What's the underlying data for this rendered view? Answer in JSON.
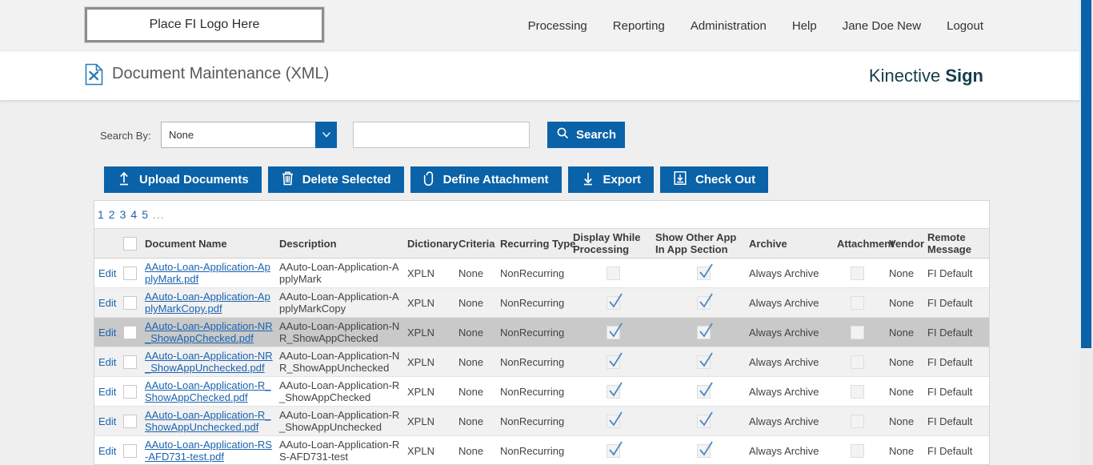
{
  "header": {
    "logo_placeholder": "Place FI Logo Here",
    "nav": [
      "Processing",
      "Reporting",
      "Administration",
      "Help",
      "Jane Doe New",
      "Logout"
    ]
  },
  "title_bar": {
    "page_title": "Document Maintenance (XML)",
    "brand_name": "Kinective",
    "brand_product": "Sign"
  },
  "search": {
    "label": "Search By:",
    "selected_option": "None",
    "input_value": "",
    "button_label": "Search"
  },
  "toolbar": {
    "buttons": [
      {
        "label": "Upload Documents",
        "icon": "upload-icon"
      },
      {
        "label": "Delete Selected",
        "icon": "trash-icon"
      },
      {
        "label": "Define Attachment",
        "icon": "paperclip-icon"
      },
      {
        "label": "Export",
        "icon": "download-icon"
      },
      {
        "label": "Check Out",
        "icon": "checkout-icon"
      }
    ]
  },
  "pagination": {
    "pages": [
      "1",
      "2",
      "3",
      "4",
      "5"
    ],
    "ellipsis": "..."
  },
  "table": {
    "edit_label": "Edit",
    "headers": [
      "Document Name",
      "Description",
      "Dictionary",
      "Criteria",
      "Recurring Type",
      "Display While Processing",
      "Show Other App In App Section",
      "Archive",
      "Attachment",
      "Vendor",
      "Remote Message"
    ],
    "rows": [
      {
        "name": "AAuto-Loan-Application-ApplyMark.pdf",
        "description": "AAuto-Loan-Application-ApplyMark",
        "dictionary": "XPLN",
        "criteria": "None",
        "recurring": "NonRecurring",
        "display_while_processing": false,
        "show_other_app": true,
        "archive": "Always Archive",
        "attachment": false,
        "vendor": "None",
        "remote_message": "FI Default",
        "highlighted": false
      },
      {
        "name": "AAuto-Loan-Application-ApplyMarkCopy.pdf",
        "description": "AAuto-Loan-Application-ApplyMarkCopy",
        "dictionary": "XPLN",
        "criteria": "None",
        "recurring": "NonRecurring",
        "display_while_processing": true,
        "show_other_app": true,
        "archive": "Always Archive",
        "attachment": false,
        "vendor": "None",
        "remote_message": "FI Default",
        "highlighted": false
      },
      {
        "name": "AAuto-Loan-Application-NR_ShowAppChecked.pdf",
        "description": "AAuto-Loan-Application-NR_ShowAppChecked",
        "dictionary": "XPLN",
        "criteria": "None",
        "recurring": "NonRecurring",
        "display_while_processing": true,
        "show_other_app": true,
        "archive": "Always Archive",
        "attachment": false,
        "vendor": "None",
        "remote_message": "FI Default",
        "highlighted": true
      },
      {
        "name": "AAuto-Loan-Application-NR_ShowAppUnchecked.pdf",
        "description": "AAuto-Loan-Application-NR_ShowAppUnchecked",
        "dictionary": "XPLN",
        "criteria": "None",
        "recurring": "NonRecurring",
        "display_while_processing": true,
        "show_other_app": true,
        "archive": "Always Archive",
        "attachment": false,
        "vendor": "None",
        "remote_message": "FI Default",
        "highlighted": false
      },
      {
        "name": "AAuto-Loan-Application-R_ShowAppChecked.pdf",
        "description": "AAuto-Loan-Application-R_ShowAppChecked",
        "dictionary": "XPLN",
        "criteria": "None",
        "recurring": "NonRecurring",
        "display_while_processing": true,
        "show_other_app": true,
        "archive": "Always Archive",
        "attachment": false,
        "vendor": "None",
        "remote_message": "FI Default",
        "highlighted": false
      },
      {
        "name": "AAuto-Loan-Application-R_ShowAppUnchecked.pdf",
        "description": "AAuto-Loan-Application-R_ShowAppUnchecked",
        "dictionary": "XPLN",
        "criteria": "None",
        "recurring": "NonRecurring",
        "display_while_processing": true,
        "show_other_app": true,
        "archive": "Always Archive",
        "attachment": false,
        "vendor": "None",
        "remote_message": "FI Default",
        "highlighted": false
      },
      {
        "name": "AAuto-Loan-Application-RS-AFD731-test.pdf",
        "description": "AAuto-Loan-Application-RS-AFD731-test",
        "dictionary": "XPLN",
        "criteria": "None",
        "recurring": "NonRecurring",
        "display_while_processing": true,
        "show_other_app": true,
        "archive": "Always Archive",
        "attachment": false,
        "vendor": "None",
        "remote_message": "FI Default",
        "highlighted": false
      }
    ]
  },
  "colors": {
    "accent_blue": "#0a62a8",
    "link_blue": "#1a63b0",
    "brand_teal": "#143e4c",
    "check_blue": "#4e87c6",
    "row_alt": "#f1f1f1",
    "row_highlight": "#c9c9c9"
  }
}
